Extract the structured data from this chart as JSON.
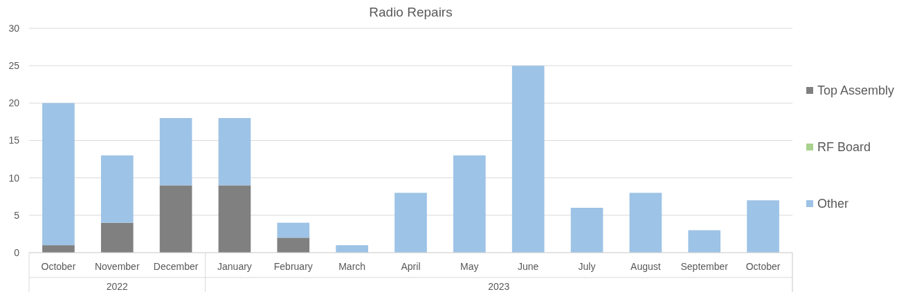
{
  "chart_data": {
    "type": "bar",
    "title": "Radio Repairs",
    "stacked": true,
    "categories": [
      "October",
      "November",
      "December",
      "January",
      "February",
      "March",
      "April",
      "May",
      "June",
      "July",
      "August",
      "September",
      "October"
    ],
    "series": [
      {
        "name": "Top Assembly",
        "color": "#808080",
        "values": [
          1,
          4,
          9,
          9,
          2,
          0,
          0,
          0,
          0,
          0,
          0,
          0,
          0
        ]
      },
      {
        "name": "RF Board",
        "color": "#a9d18e",
        "values": [
          0,
          0,
          0,
          0,
          0,
          0,
          0,
          0,
          0,
          0,
          0,
          0,
          0
        ]
      },
      {
        "name": "Other",
        "color": "#9dc3e6",
        "values": [
          19,
          9,
          9,
          9,
          2,
          1,
          8,
          13,
          25,
          6,
          8,
          3,
          7
        ]
      }
    ],
    "annotations": [
      "2022",
      "2023"
    ],
    "ylim": [
      0,
      30
    ],
    "yticks": [
      0,
      5,
      10,
      15,
      20,
      25,
      30
    ],
    "grid": "y",
    "legend": "right"
  }
}
